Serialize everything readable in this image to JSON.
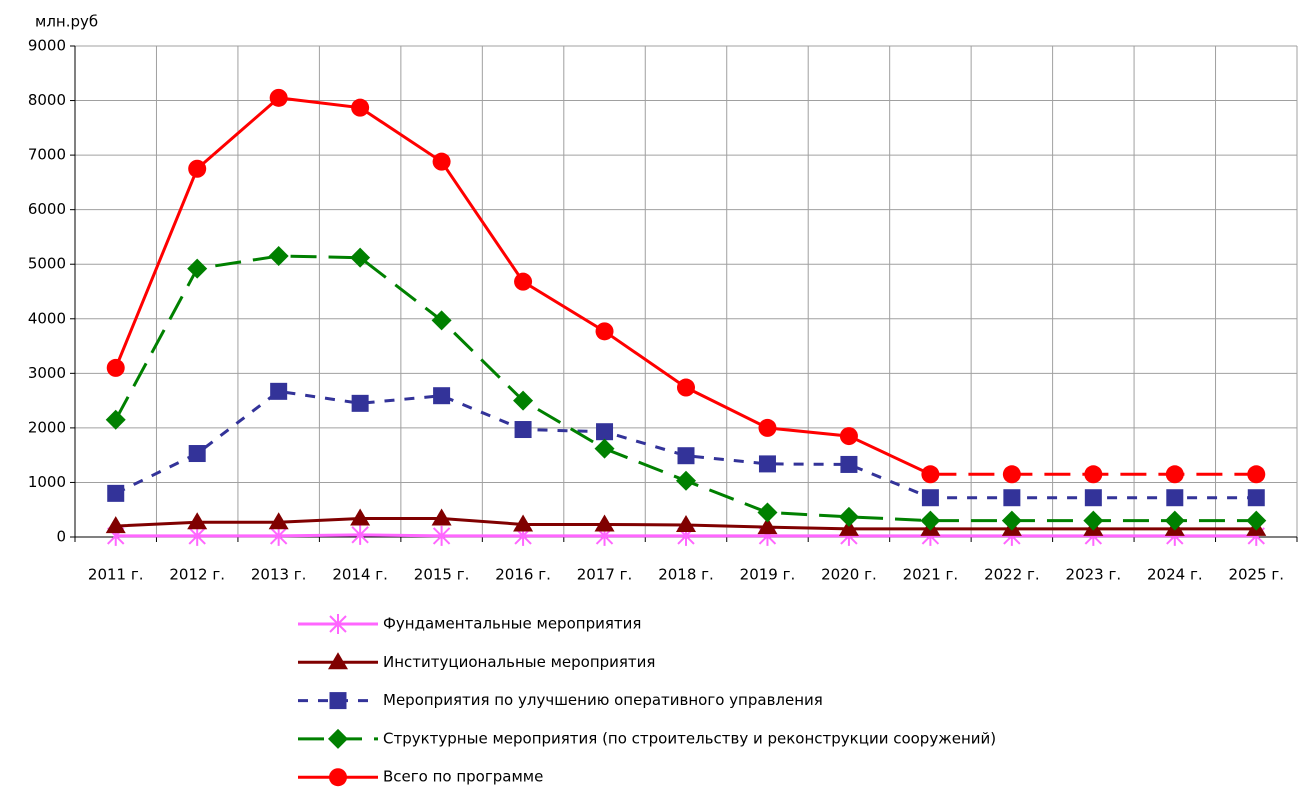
{
  "chart_data": {
    "type": "line",
    "ylabel": "млн.руб",
    "categories": [
      "2011 г.",
      "2012 г.",
      "2013 г.",
      "2014 г.",
      "2015 г.",
      "2016 г.",
      "2017 г.",
      "2018 г.",
      "2019 г.",
      "2020 г.",
      "2021 г.",
      "2022 г.",
      "2023 г.",
      "2024 г.",
      "2025 г."
    ],
    "ylim": [
      0,
      9000
    ],
    "yticks": [
      0,
      1000,
      2000,
      3000,
      4000,
      5000,
      6000,
      7000,
      8000,
      9000
    ],
    "grid": true,
    "legend": "bottom",
    "series": [
      {
        "name": "Фундаментальные мероприятия",
        "color": "#ff66ff",
        "marker": "star",
        "dash": "solid",
        "values": [
          20,
          20,
          20,
          40,
          20,
          20,
          20,
          20,
          20,
          20,
          20,
          20,
          20,
          20,
          20
        ]
      },
      {
        "name": "Институциональные мероприятия",
        "color": "#800000",
        "marker": "triangle",
        "dash": "solid",
        "values": [
          200,
          270,
          270,
          340,
          340,
          230,
          230,
          220,
          180,
          150,
          150,
          150,
          150,
          150,
          150
        ]
      },
      {
        "name": "Мероприятия по улучшению оперативного управления",
        "color": "#333399",
        "marker": "square",
        "dash": "short",
        "values": [
          800,
          1530,
          2670,
          2450,
          2590,
          1970,
          1930,
          1490,
          1340,
          1330,
          720,
          720,
          720,
          720,
          720
        ]
      },
      {
        "name": "Структурные мероприятия (по строительству и реконструкции сооружений)",
        "color": "#008000",
        "marker": "diamond",
        "dash": "long",
        "values": [
          2150,
          4920,
          5150,
          5120,
          3970,
          2500,
          1620,
          1030,
          450,
          370,
          300,
          300,
          300,
          300,
          300
        ]
      },
      {
        "name": "Всего по программе",
        "color": "#ff0000",
        "marker": "circle",
        "dash": "solid",
        "dashed_from": "2021 г.",
        "values": [
          3100,
          6750,
          8050,
          7870,
          6880,
          4680,
          3770,
          2740,
          2000,
          1850,
          1150,
          1150,
          1150,
          1150,
          1150
        ]
      }
    ]
  }
}
